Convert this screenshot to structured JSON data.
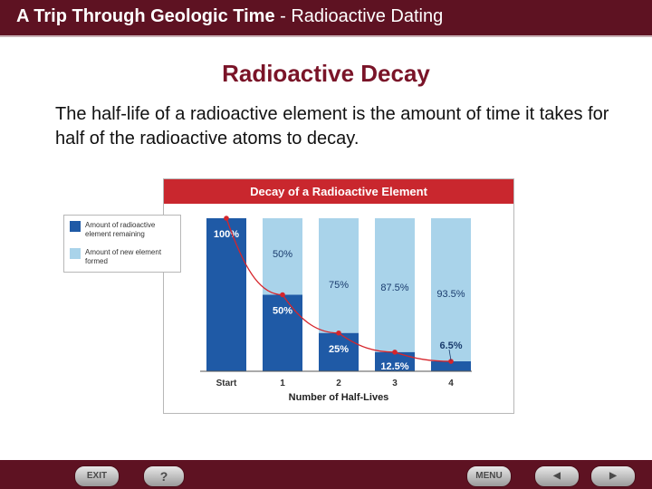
{
  "header": {
    "title_bold": "A Trip Through Geologic Time",
    "title_rest": " - Radioactive Dating"
  },
  "slide": {
    "title": "Radioactive Decay",
    "body": "The half-life of a radioactive element is the amount of time it takes for half of the radioactive atoms to decay."
  },
  "legend": {
    "items": [
      {
        "label": "Amount of radioactive element remaining",
        "color": "#1f5aa6"
      },
      {
        "label": "Amount of new element formed",
        "color": "#a9d3ea"
      }
    ]
  },
  "chart_data": {
    "type": "bar",
    "title": "Decay of a Radioactive Element",
    "xlabel": "Number of Half-Lives",
    "ylabel": "",
    "categories": [
      "Start",
      "1",
      "2",
      "3",
      "4"
    ],
    "series": [
      {
        "name": "Amount of radioactive element remaining",
        "values": [
          100,
          50,
          25,
          12.5,
          6.5
        ],
        "labels": [
          "100%",
          "50%",
          "25%",
          "12.5%",
          "6.5%"
        ],
        "color": "#1f5aa6"
      },
      {
        "name": "Amount of new element formed",
        "values": [
          0,
          50,
          75,
          87.5,
          93.5
        ],
        "labels": [
          "",
          "50%",
          "75%",
          "87.5%",
          "93.5%"
        ],
        "color": "#a9d3ea"
      }
    ],
    "ylim": [
      0,
      100
    ],
    "stacked": true,
    "trend_line_color": "#d6252b"
  },
  "nav": {
    "exit_label": "EXIT",
    "help_label": "?",
    "menu_label": "MENU",
    "prev_label": "◀",
    "next_label": "▶"
  }
}
